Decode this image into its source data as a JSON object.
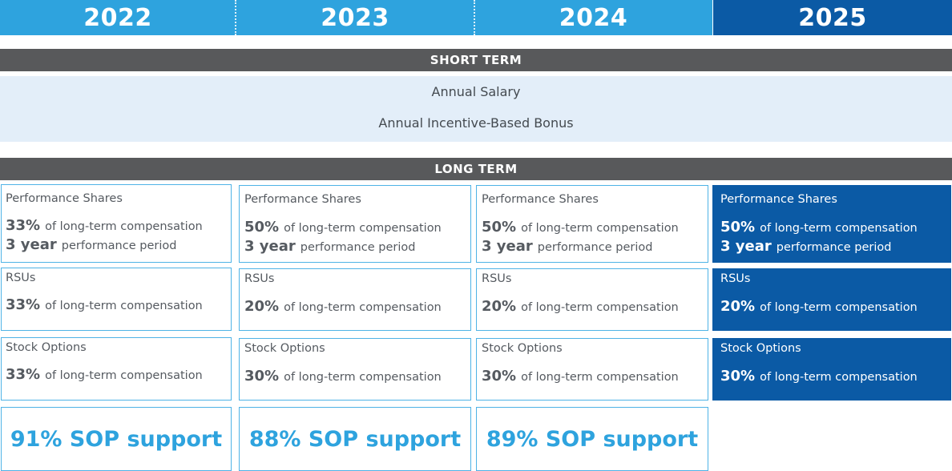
{
  "years": [
    "2022",
    "2023",
    "2024",
    "2025"
  ],
  "short_term": {
    "heading": "SHORT TERM",
    "items": [
      "Annual Salary",
      "Annual Incentive-Based Bonus"
    ]
  },
  "long_term": {
    "heading": "LONG TERM",
    "columns": [
      {
        "performance_shares": {
          "title": "Performance Shares",
          "pct": "33%",
          "pct_text": "of long-term compensation",
          "period": "3 year",
          "period_text": "performance period"
        },
        "rsus": {
          "title": "RSUs",
          "pct": "33%",
          "pct_text": "of long-term compensation"
        },
        "stock_options": {
          "title": "Stock Options",
          "pct": "33%",
          "pct_text": "of long-term compensation"
        },
        "sop": "91% SOP support"
      },
      {
        "performance_shares": {
          "title": "Performance Shares",
          "pct": "50%",
          "pct_text": "of long-term compensation",
          "period": "3 year",
          "period_text": "performance period"
        },
        "rsus": {
          "title": "RSUs",
          "pct": "20%",
          "pct_text": "of long-term compensation"
        },
        "stock_options": {
          "title": "Stock Options",
          "pct": "30%",
          "pct_text": "of long-term compensation"
        },
        "sop": "88% SOP support"
      },
      {
        "performance_shares": {
          "title": "Performance Shares",
          "pct": "50%",
          "pct_text": "of long-term compensation",
          "period": "3 year",
          "period_text": "performance period"
        },
        "rsus": {
          "title": "RSUs",
          "pct": "20%",
          "pct_text": "of long-term compensation"
        },
        "stock_options": {
          "title": "Stock Options",
          "pct": "30%",
          "pct_text": "of long-term compensation"
        },
        "sop": "89% SOP support"
      },
      {
        "performance_shares": {
          "title": "Performance Shares",
          "pct": "50%",
          "pct_text": "of long-term compensation",
          "period": "3 year",
          "period_text": "performance period"
        },
        "rsus": {
          "title": "RSUs",
          "pct": "20%",
          "pct_text": "of long-term compensation"
        },
        "stock_options": {
          "title": "Stock Options",
          "pct": "30%",
          "pct_text": "of long-term compensation"
        }
      }
    ]
  },
  "colors": {
    "year_light": "#2ea3de",
    "year_dark": "#0b5aa5",
    "band": "#58595b",
    "short_bg": "#e3eef9",
    "card_border": "#4fb3e6",
    "sop_text": "#2ea3de"
  }
}
